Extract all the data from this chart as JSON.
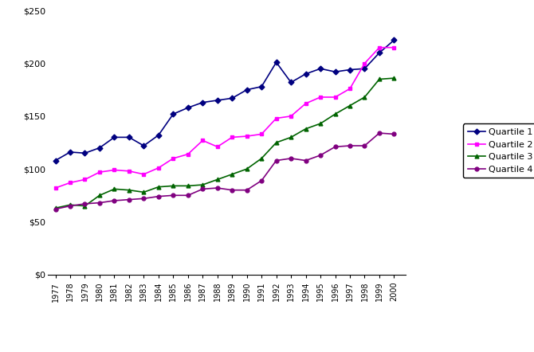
{
  "years": [
    1977,
    1978,
    1979,
    1980,
    1981,
    1982,
    1983,
    1984,
    1985,
    1986,
    1987,
    1988,
    1989,
    1990,
    1991,
    1992,
    1993,
    1994,
    1995,
    1996,
    1997,
    1998,
    1999,
    2000
  ],
  "quartile1": [
    108,
    116,
    115,
    120,
    130,
    130,
    122,
    132,
    152,
    158,
    163,
    165,
    167,
    175,
    178,
    201,
    182,
    190,
    195,
    192,
    194,
    195,
    210,
    222
  ],
  "quartile2": [
    82,
    87,
    90,
    97,
    99,
    98,
    95,
    101,
    110,
    114,
    127,
    121,
    130,
    131,
    133,
    148,
    150,
    162,
    168,
    168,
    176,
    200,
    215,
    215
  ],
  "quartile3": [
    63,
    66,
    65,
    75,
    81,
    80,
    78,
    83,
    84,
    84,
    85,
    90,
    95,
    100,
    110,
    125,
    130,
    138,
    143,
    152,
    160,
    168,
    185,
    186
  ],
  "quartile4": [
    62,
    65,
    67,
    68,
    70,
    71,
    72,
    74,
    75,
    75,
    81,
    82,
    80,
    80,
    89,
    108,
    110,
    108,
    113,
    121,
    122,
    122,
    134,
    133
  ],
  "colors": {
    "quartile1": "#000080",
    "quartile2": "#ff00ff",
    "quartile3": "#006400",
    "quartile4": "#800080"
  },
  "markers": {
    "quartile1": "D",
    "quartile2": "s",
    "quartile3": "^",
    "quartile4": "o"
  },
  "legend_labels": [
    "Quartile 1",
    "Quartile 2",
    "Quartile 3",
    "Quartile 4"
  ],
  "ylim": [
    0,
    250
  ],
  "yticks": [
    0,
    50,
    100,
    150,
    200,
    250
  ],
  "ytick_labels": [
    "$0",
    "$50",
    "$100",
    "$150",
    "$200",
    "$250"
  ],
  "background_color": "#ffffff"
}
